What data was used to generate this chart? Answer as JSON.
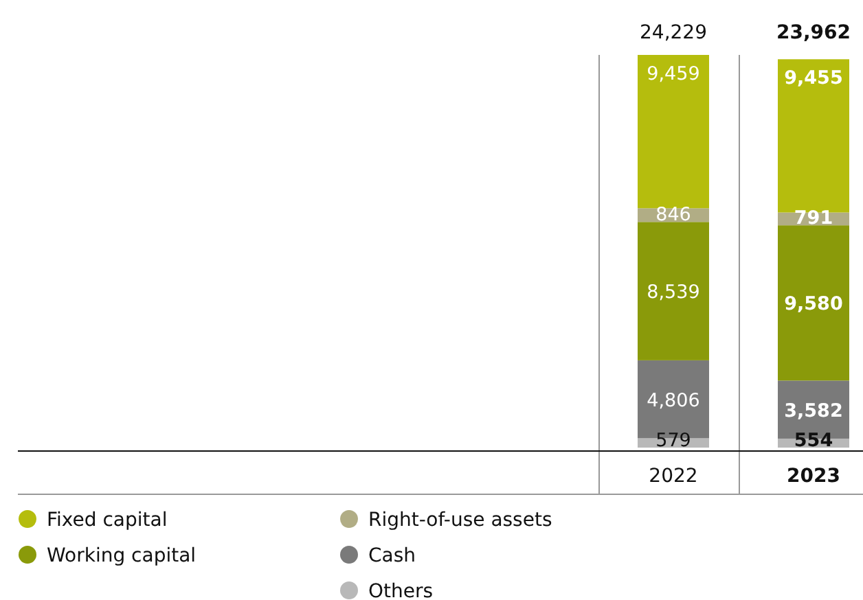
{
  "chart_data": {
    "type": "bar",
    "stacked": true,
    "categories": [
      "2022",
      "2023"
    ],
    "series": [
      {
        "name": "Others",
        "color": "#b8b8b8",
        "values": [
          579,
          554
        ],
        "value_labels": [
          "579",
          "554"
        ]
      },
      {
        "name": "Cash",
        "color": "#7a7a7a",
        "values": [
          4806,
          3582
        ],
        "value_labels": [
          "4,806",
          "3,582"
        ]
      },
      {
        "name": "Working capital",
        "color": "#8a9a0a",
        "values": [
          8539,
          9580
        ],
        "value_labels": [
          "8,539",
          "9,580"
        ]
      },
      {
        "name": "Right-of-use assets",
        "color": "#b1ad85",
        "values": [
          846,
          791
        ],
        "value_labels": [
          "846",
          "791"
        ]
      },
      {
        "name": "Fixed capital",
        "color": "#b5bd0d",
        "values": [
          9459,
          9455
        ],
        "value_labels": [
          "9,459",
          "9,455"
        ]
      }
    ],
    "totals": [
      "24,229",
      "23,962"
    ],
    "legend": "bottom"
  }
}
